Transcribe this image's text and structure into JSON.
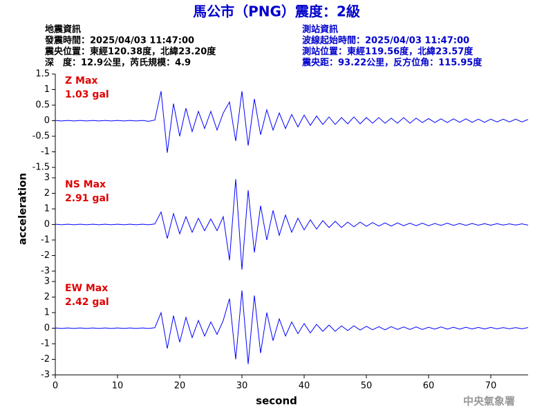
{
  "header": {
    "title": "馬公市（PNG）震度：2級",
    "left": [
      "地震資訊",
      "發震時間：2025/04/03 11:47:00",
      "震央位置：東經120.38度，北緯23.20度",
      "深　度：12.9公里，芮氏規模：4.9"
    ],
    "right": [
      "測站資訊",
      "波線起始時間：2025/04/03 11:47:00",
      "測站位置：東經119.56度，北緯23.57度",
      "震央距：93.22公里，反方位角：115.95度"
    ]
  },
  "footer": "中央氣象署",
  "chart_data": [
    {
      "type": "line",
      "annotations": [
        "Z Max",
        "1.03 gal"
      ],
      "color": "#0000ff",
      "xlim": [
        0,
        76
      ],
      "ylim": [
        -1.5,
        1.5
      ],
      "yticks": [
        -1.5,
        -1,
        -0.5,
        0,
        0.5,
        1,
        1.5
      ],
      "x": [
        0,
        1,
        2,
        3,
        4,
        5,
        6,
        7,
        8,
        9,
        10,
        11,
        12,
        13,
        14,
        15,
        16,
        17,
        18,
        19,
        20,
        21,
        22,
        23,
        24,
        25,
        26,
        27,
        28,
        29,
        30,
        31,
        32,
        33,
        34,
        35,
        36,
        37,
        38,
        39,
        40,
        41,
        42,
        43,
        44,
        45,
        46,
        47,
        48,
        49,
        50,
        51,
        52,
        53,
        54,
        55,
        56,
        57,
        58,
        59,
        60,
        61,
        62,
        63,
        64,
        65,
        66,
        67,
        68,
        69,
        70,
        71,
        72,
        73,
        74,
        75,
        76
      ],
      "values": [
        0.01,
        -0.01,
        0.01,
        -0.01,
        0.01,
        -0.01,
        0.01,
        -0.01,
        0.01,
        -0.01,
        0.01,
        -0.01,
        0.01,
        -0.01,
        0.01,
        -0.02,
        0.02,
        0.95,
        -1.03,
        0.55,
        -0.5,
        0.4,
        -0.35,
        0.3,
        -0.25,
        0.3,
        -0.3,
        0.25,
        0.6,
        -0.65,
        0.95,
        -0.8,
        0.7,
        -0.45,
        0.35,
        -0.3,
        0.25,
        -0.25,
        0.2,
        -0.2,
        0.18,
        -0.15,
        0.15,
        -0.12,
        0.12,
        -0.12,
        0.1,
        -0.1,
        0.12,
        -0.1,
        0.1,
        -0.08,
        0.1,
        -0.08,
        0.08,
        -0.08,
        0.1,
        -0.08,
        0.08,
        -0.06,
        0.07,
        -0.06,
        0.06,
        -0.06,
        0.06,
        -0.05,
        0.06,
        -0.05,
        0.05,
        -0.05,
        0.05,
        -0.04,
        0.05,
        -0.04,
        0.05,
        -0.04,
        0.04
      ]
    },
    {
      "type": "line",
      "annotations": [
        "NS Max",
        "2.91 gal"
      ],
      "color": "#0000ff",
      "ylabel": "acceleration",
      "xlim": [
        0,
        76
      ],
      "ylim": [
        -3,
        3
      ],
      "yticks": [
        -3,
        -2,
        -1,
        0,
        1,
        2,
        3
      ],
      "x": [
        0,
        1,
        2,
        3,
        4,
        5,
        6,
        7,
        8,
        9,
        10,
        11,
        12,
        13,
        14,
        15,
        16,
        17,
        18,
        19,
        20,
        21,
        22,
        23,
        24,
        25,
        26,
        27,
        28,
        29,
        30,
        31,
        32,
        33,
        34,
        35,
        36,
        37,
        38,
        39,
        40,
        41,
        42,
        43,
        44,
        45,
        46,
        47,
        48,
        49,
        50,
        51,
        52,
        53,
        54,
        55,
        56,
        57,
        58,
        59,
        60,
        61,
        62,
        63,
        64,
        65,
        66,
        67,
        68,
        69,
        70,
        71,
        72,
        73,
        74,
        75,
        76
      ],
      "values": [
        0.02,
        -0.02,
        0.02,
        -0.02,
        0.02,
        -0.02,
        0.02,
        -0.02,
        0.02,
        -0.02,
        0.02,
        -0.02,
        0.02,
        -0.02,
        0.02,
        -0.02,
        0.03,
        0.8,
        -0.9,
        0.7,
        -0.6,
        0.5,
        -0.5,
        0.4,
        -0.4,
        0.35,
        -0.4,
        0.5,
        -2.3,
        2.91,
        -2.9,
        2.2,
        -1.8,
        1.2,
        -1.0,
        0.9,
        -0.7,
        0.6,
        -0.5,
        0.4,
        -0.35,
        0.3,
        -0.3,
        0.25,
        -0.2,
        0.2,
        -0.2,
        0.15,
        -0.15,
        0.15,
        -0.12,
        0.12,
        -0.1,
        0.1,
        -0.1,
        0.1,
        -0.08,
        0.08,
        -0.08,
        0.08,
        -0.08,
        0.06,
        -0.06,
        0.08,
        -0.06,
        0.06,
        -0.06,
        0.06,
        -0.05,
        0.05,
        -0.05,
        0.05,
        -0.04,
        0.04,
        -0.04,
        0.04,
        -0.04
      ]
    },
    {
      "type": "line",
      "annotations": [
        "EW Max",
        "2.42 gal"
      ],
      "color": "#0000ff",
      "xlabel": "second",
      "xlim": [
        0,
        76
      ],
      "xticks": [
        0,
        10,
        20,
        30,
        40,
        50,
        60,
        70
      ],
      "ylim": [
        -3,
        3
      ],
      "yticks": [
        -3,
        -2,
        -1,
        0,
        1,
        2,
        3
      ],
      "x": [
        0,
        1,
        2,
        3,
        4,
        5,
        6,
        7,
        8,
        9,
        10,
        11,
        12,
        13,
        14,
        15,
        16,
        17,
        18,
        19,
        20,
        21,
        22,
        23,
        24,
        25,
        26,
        27,
        28,
        29,
        30,
        31,
        32,
        33,
        34,
        35,
        36,
        37,
        38,
        39,
        40,
        41,
        42,
        43,
        44,
        45,
        46,
        47,
        48,
        49,
        50,
        51,
        52,
        53,
        54,
        55,
        56,
        57,
        58,
        59,
        60,
        61,
        62,
        63,
        64,
        65,
        66,
        67,
        68,
        69,
        70,
        71,
        72,
        73,
        74,
        75,
        76
      ],
      "values": [
        0.02,
        -0.02,
        0.02,
        -0.02,
        0.02,
        -0.02,
        0.02,
        -0.02,
        0.02,
        -0.02,
        0.02,
        -0.02,
        0.02,
        -0.02,
        0.02,
        -0.02,
        0.03,
        1.0,
        -1.3,
        0.8,
        -0.9,
        0.7,
        -0.6,
        0.5,
        -0.5,
        0.4,
        -0.4,
        0.5,
        1.9,
        -2.0,
        2.42,
        -2.3,
        2.1,
        -1.6,
        1.0,
        -0.8,
        0.6,
        -0.5,
        0.4,
        -0.35,
        0.3,
        -0.3,
        0.25,
        -0.2,
        0.2,
        -0.2,
        0.15,
        -0.15,
        0.15,
        -0.12,
        0.12,
        -0.1,
        0.1,
        -0.1,
        0.1,
        -0.08,
        0.08,
        -0.08,
        0.08,
        -0.08,
        0.06,
        -0.06,
        0.08,
        -0.06,
        0.06,
        -0.06,
        0.06,
        -0.05,
        0.05,
        -0.05,
        0.05,
        -0.04,
        0.04,
        -0.04,
        0.04,
        -0.04,
        0.04
      ]
    }
  ]
}
